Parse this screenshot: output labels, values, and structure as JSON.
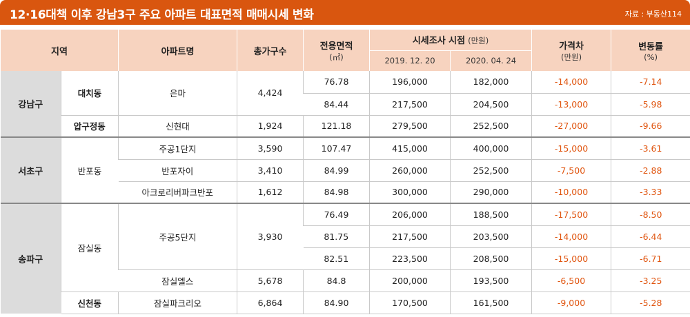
{
  "title": "12·16대책 이후 강남3구 주요 아파트 대표면적 매매시세 변화",
  "source": "자료 : 부동산114",
  "headers": {
    "region": "지역",
    "apt": "아파트명",
    "households": "총가구수",
    "area": "전용면적",
    "area_unit": "(㎡)",
    "survey": "시세조사 시점",
    "survey_unit": "(만원)",
    "date1": "2019. 12. 20",
    "date2": "2020. 04. 24",
    "diff": "가격차",
    "diff_unit": "(만원)",
    "rate": "변동률",
    "rate_unit": "(%)"
  },
  "regions": [
    "강남구",
    "서초구",
    "송파구"
  ],
  "dongs": [
    "대치동",
    "압구정동",
    "반포동",
    "잠실동",
    "신천동"
  ],
  "apartments": [
    "은마",
    "신현대",
    "주공1단지",
    "반포자이",
    "아크로리버파크반포",
    "주공5단지",
    "잠실엘스",
    "잠실파크리오"
  ],
  "households": [
    "4,424",
    "1,924",
    "3,590",
    "3,410",
    "1,612",
    "3,930",
    "5,678",
    "6,864"
  ],
  "rows": [
    {
      "area": "76.78",
      "p1": "196,000",
      "p2": "182,000",
      "diff": "-14,000",
      "rate": "-7.14"
    },
    {
      "area": "84.44",
      "p1": "217,500",
      "p2": "204,500",
      "diff": "-13,000",
      "rate": "-5.98"
    },
    {
      "area": "121.18",
      "p1": "279,500",
      "p2": "252,500",
      "diff": "-27,000",
      "rate": "-9.66"
    },
    {
      "area": "107.47",
      "p1": "415,000",
      "p2": "400,000",
      "diff": "-15,000",
      "rate": "-3.61"
    },
    {
      "area": "84.99",
      "p1": "260,000",
      "p2": "252,500",
      "diff": "-7,500",
      "rate": "-2.88"
    },
    {
      "area": "84.98",
      "p1": "300,000",
      "p2": "290,000",
      "diff": "-10,000",
      "rate": "-3.33"
    },
    {
      "area": "76.49",
      "p1": "206,000",
      "p2": "188,500",
      "diff": "-17,500",
      "rate": "-8.50"
    },
    {
      "area": "81.75",
      "p1": "217,500",
      "p2": "203,500",
      "diff": "-14,000",
      "rate": "-6.44"
    },
    {
      "area": "82.51",
      "p1": "223,500",
      "p2": "208,500",
      "diff": "-15,000",
      "rate": "-6.71"
    },
    {
      "area": "84.8",
      "p1": "200,000",
      "p2": "193,500",
      "diff": "-6,500",
      "rate": "-3.25"
    },
    {
      "area": "84.90",
      "p1": "170,500",
      "p2": "161,500",
      "diff": "-9,000",
      "rate": "-5.28"
    }
  ],
  "colors": {
    "accent": "#d9560f",
    "header_bg": "#f7d3bf",
    "region_bg": "#dcdcdc",
    "negative": "#e0540e"
  }
}
